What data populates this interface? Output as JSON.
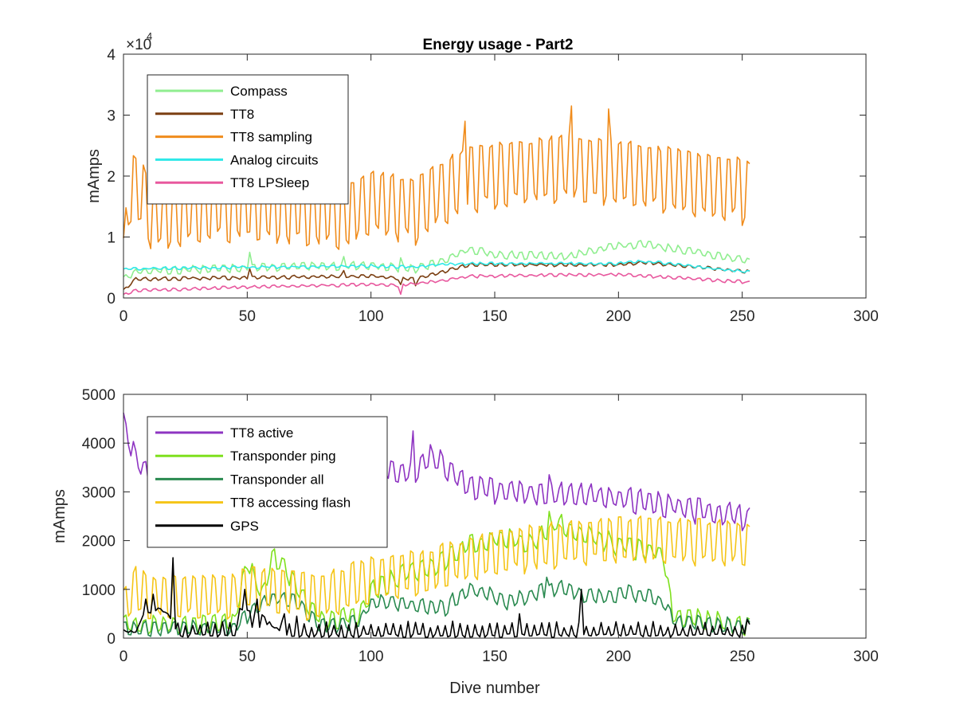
{
  "chart_data": [
    {
      "type": "line",
      "title": "Energy usage - Part2",
      "xlabel": "",
      "ylabel": "mAmps",
      "xlim": [
        0,
        300
      ],
      "ylim": [
        0,
        40000
      ],
      "xticks": [
        "0",
        "50",
        "100",
        "150",
        "200",
        "250",
        "300"
      ],
      "yticks": [
        "0",
        "1",
        "2",
        "3",
        "4"
      ],
      "y_exponent_prefix": "×10",
      "y_exponent": "4",
      "grid": false,
      "legend_position": "top-left",
      "x_count": 254,
      "series": [
        {
          "name": "Compass",
          "color": "#90ee90",
          "pattern": {
            "type": "piecewise",
            "knots": [
              [
                0,
                3000
              ],
              [
                5,
                4200
              ],
              [
                50,
                4800
              ],
              [
                100,
                5200
              ],
              [
                118,
                4600
              ],
              [
                125,
                5400
              ],
              [
                140,
                7800
              ],
              [
                150,
                7000
              ],
              [
                180,
                6600
              ],
              [
                195,
                8200
              ],
              [
                210,
                8600
              ],
              [
                235,
                7200
              ],
              [
                253,
                5800
              ]
            ],
            "osc_amp": 600,
            "period": 4,
            "noise": 250,
            "spikes": [
              [
                51,
                7500
              ],
              [
                89,
                6800
              ],
              [
                112,
                6600
              ]
            ]
          }
        },
        {
          "name": "TT8",
          "color": "#7b3f12",
          "pattern": {
            "type": "piecewise",
            "knots": [
              [
                0,
                1200
              ],
              [
                5,
                3000
              ],
              [
                50,
                3300
              ],
              [
                100,
                3500
              ],
              [
                118,
                3000
              ],
              [
                125,
                3800
              ],
              [
                140,
                5400
              ],
              [
                200,
                5400
              ],
              [
                210,
                5800
              ],
              [
                253,
                4200
              ]
            ],
            "osc_amp": 250,
            "period": 4,
            "noise": 120,
            "spikes": [
              [
                51,
                4800
              ],
              [
                89,
                4500
              ],
              [
                112,
                2200
              ],
              [
                118,
                2000
              ]
            ]
          }
        },
        {
          "name": "TT8 sampling",
          "color": "#f08c1c",
          "pattern": {
            "type": "piecewise",
            "knots": [
              [
                0,
                3500
              ],
              [
                2,
                14000
              ],
              [
                4,
                17000
              ],
              [
                8,
                15000
              ],
              [
                12,
                11000
              ],
              [
                20,
                12500
              ],
              [
                50,
                13500
              ],
              [
                90,
                12000
              ],
              [
                100,
                14000
              ],
              [
                118,
                13000
              ],
              [
                125,
                15000
              ],
              [
                140,
                18000
              ],
              [
                180,
                20000
              ],
              [
                200,
                19000
              ],
              [
                253,
                16000
              ]
            ],
            "osc_amp": 6500,
            "period": 4,
            "noise": 500,
            "spikes": [
              [
                181,
                31500
              ],
              [
                196,
                31000
              ],
              [
                138,
                29000
              ]
            ]
          }
        },
        {
          "name": "Analog circuits",
          "color": "#2ee8e8",
          "pattern": {
            "type": "piecewise",
            "knots": [
              [
                0,
                4600
              ],
              [
                10,
                4800
              ],
              [
                50,
                5000
              ],
              [
                100,
                5200
              ],
              [
                118,
                5000
              ],
              [
                125,
                5400
              ],
              [
                140,
                5600
              ],
              [
                200,
                5600
              ],
              [
                210,
                6000
              ],
              [
                253,
                4200
              ]
            ],
            "osc_amp": 180,
            "period": 4,
            "noise": 120,
            "spikes": []
          }
        },
        {
          "name": "TT8 LPSleep",
          "color": "#e8589e",
          "pattern": {
            "type": "piecewise",
            "knots": [
              [
                0,
                400
              ],
              [
                5,
                1200
              ],
              [
                50,
                1700
              ],
              [
                100,
                2200
              ],
              [
                112,
                2000
              ],
              [
                125,
                2600
              ],
              [
                140,
                3500
              ],
              [
                200,
                3800
              ],
              [
                253,
                2500
              ]
            ],
            "osc_amp": 220,
            "period": 4,
            "noise": 120,
            "spikes": [
              [
                112,
                600
              ]
            ]
          }
        }
      ],
      "legend": [
        "Compass",
        "TT8",
        "TT8 sampling",
        "Analog circuits",
        "TT8 LPSleep"
      ]
    },
    {
      "type": "line",
      "title": "",
      "xlabel": "Dive number",
      "ylabel": "mAmps",
      "xlim": [
        0,
        300
      ],
      "ylim": [
        0,
        5000
      ],
      "xticks": [
        "0",
        "50",
        "100",
        "150",
        "200",
        "250",
        "300"
      ],
      "yticks": [
        "0",
        "1000",
        "2000",
        "3000",
        "4000",
        "5000"
      ],
      "grid": false,
      "legend_position": "top-left",
      "x_count": 254,
      "series": [
        {
          "name": "TT8 active",
          "color": "#8e34c2",
          "pattern": {
            "type": "piecewise",
            "knots": [
              [
                0,
                4350
              ],
              [
                3,
                3900
              ],
              [
                8,
                3300
              ],
              [
                15,
                3500
              ],
              [
                40,
                3600
              ],
              [
                100,
                3500
              ],
              [
                118,
                3300
              ],
              [
                125,
                3700
              ],
              [
                140,
                3000
              ],
              [
                200,
                2800
              ],
              [
                253,
                2400
              ]
            ],
            "osc_amp": 250,
            "period": 4,
            "noise": 80,
            "spikes": [
              [
                117,
                4250
              ],
              [
                125,
                3800
              ],
              [
                172,
                3350
              ]
            ]
          }
        },
        {
          "name": "Transponder ping",
          "color": "#7fe01e",
          "pattern": {
            "type": "piecewise",
            "knots": [
              [
                0,
                200
              ],
              [
                20,
                200
              ],
              [
                45,
                300
              ],
              [
                50,
                1500
              ],
              [
                56,
                800
              ],
              [
                60,
                1600
              ],
              [
                66,
                1300
              ],
              [
                72,
                800
              ],
              [
                80,
                300
              ],
              [
                95,
                400
              ],
              [
                100,
                900
              ],
              [
                115,
                1300
              ],
              [
                125,
                1400
              ],
              [
                138,
                1800
              ],
              [
                150,
                2000
              ],
              [
                165,
                1900
              ],
              [
                175,
                2300
              ],
              [
                190,
                2000
              ],
              [
                205,
                1800
              ],
              [
                218,
                1700
              ],
              [
                222,
                400
              ],
              [
                253,
                200
              ]
            ],
            "osc_amp": 200,
            "period": 4,
            "noise": 80,
            "spikes": [
              [
                172,
                2600
              ]
            ]
          }
        },
        {
          "name": "Transponder all",
          "color": "#2a8a50",
          "pattern": {
            "type": "piecewise",
            "knots": [
              [
                0,
                150
              ],
              [
                20,
                150
              ],
              [
                45,
                200
              ],
              [
                50,
                400
              ],
              [
                60,
                800
              ],
              [
                70,
                700
              ],
              [
                80,
                200
              ],
              [
                95,
                300
              ],
              [
                100,
                700
              ],
              [
                130,
                600
              ],
              [
                140,
                1000
              ],
              [
                155,
                700
              ],
              [
                175,
                1000
              ],
              [
                190,
                800
              ],
              [
                205,
                900
              ],
              [
                218,
                700
              ],
              [
                222,
                300
              ],
              [
                253,
                200
              ]
            ],
            "osc_amp": 150,
            "period": 4,
            "noise": 60,
            "spikes": [
              [
                171,
                1250
              ]
            ]
          }
        },
        {
          "name": "TT8 accessing flash",
          "color": "#f5c518",
          "pattern": {
            "type": "piecewise",
            "knots": [
              [
                0,
                400
              ],
              [
                5,
                900
              ],
              [
                10,
                700
              ],
              [
                45,
                750
              ],
              [
                50,
                900
              ],
              [
                80,
                700
              ],
              [
                100,
                1100
              ],
              [
                120,
                1200
              ],
              [
                140,
                1500
              ],
              [
                160,
                1700
              ],
              [
                180,
                1800
              ],
              [
                200,
                1900
              ],
              [
                253,
                1800
              ]
            ],
            "osc_amp": 550,
            "period": 4,
            "noise": 70,
            "spikes": []
          }
        },
        {
          "name": "GPS",
          "color": "#000000",
          "pattern": {
            "type": "piecewise",
            "knots": [
              [
                0,
                150
              ],
              [
                5,
                150
              ],
              [
                8,
                500
              ],
              [
                15,
                600
              ],
              [
                20,
                400
              ],
              [
                22,
                50
              ],
              [
                45,
                50
              ],
              [
                47,
                600
              ],
              [
                55,
                500
              ],
              [
                60,
                250
              ],
              [
                65,
                100
              ],
              [
                70,
                50
              ],
              [
                253,
                50
              ]
            ],
            "osc_amp": 0,
            "period": 4,
            "noise": 40,
            "spikes": [
              [
                9,
                800
              ],
              [
                12,
                900
              ],
              [
                20,
                1650
              ],
              [
                49,
                1000
              ],
              [
                54,
                800
              ],
              [
                65,
                500
              ],
              [
                70,
                450
              ],
              [
                185,
                1000
              ],
              [
                160,
                500
              ],
              [
                252,
                380
              ]
            ],
            "periodic_spikes": {
              "start": 22,
              "every": 3,
              "height": 280
            }
          }
        }
      ],
      "legend": [
        "TT8 active",
        "Transponder ping",
        "Transponder all",
        "TT8 accessing flash",
        "GPS"
      ]
    }
  ]
}
